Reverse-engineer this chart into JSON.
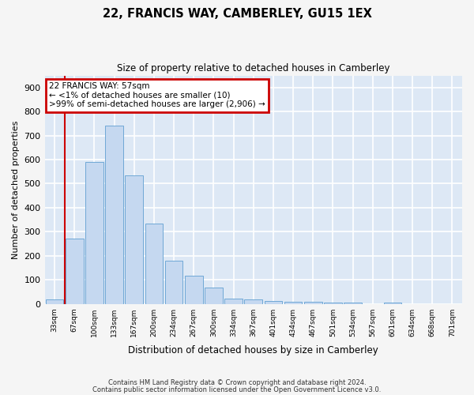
{
  "title": "22, FRANCIS WAY, CAMBERLEY, GU15 1EX",
  "subtitle": "Size of property relative to detached houses in Camberley",
  "xlabel": "Distribution of detached houses by size in Camberley",
  "ylabel": "Number of detached properties",
  "categories": [
    "33sqm",
    "67sqm",
    "100sqm",
    "133sqm",
    "167sqm",
    "200sqm",
    "234sqm",
    "267sqm",
    "300sqm",
    "334sqm",
    "367sqm",
    "401sqm",
    "434sqm",
    "467sqm",
    "501sqm",
    "534sqm",
    "567sqm",
    "601sqm",
    "634sqm",
    "668sqm",
    "701sqm"
  ],
  "values": [
    20,
    270,
    590,
    740,
    535,
    335,
    178,
    118,
    68,
    22,
    20,
    12,
    10,
    8,
    7,
    6,
    0,
    7,
    0,
    0,
    0
  ],
  "bar_color": "#c5d8f0",
  "bar_edge_color": "#6fa8d6",
  "annotation_box_color": "#cc0000",
  "annotation_text": "22 FRANCIS WAY: 57sqm\n← <1% of detached houses are smaller (10)\n>99% of semi-detached houses are larger (2,906) →",
  "ylim": [
    0,
    950
  ],
  "yticks": [
    0,
    100,
    200,
    300,
    400,
    500,
    600,
    700,
    800,
    900
  ],
  "background_color": "#dde8f5",
  "grid_color": "#ffffff",
  "fig_background": "#f5f5f5",
  "footer_line1": "Contains HM Land Registry data © Crown copyright and database right 2024.",
  "footer_line2": "Contains public sector information licensed under the Open Government Licence v3.0."
}
